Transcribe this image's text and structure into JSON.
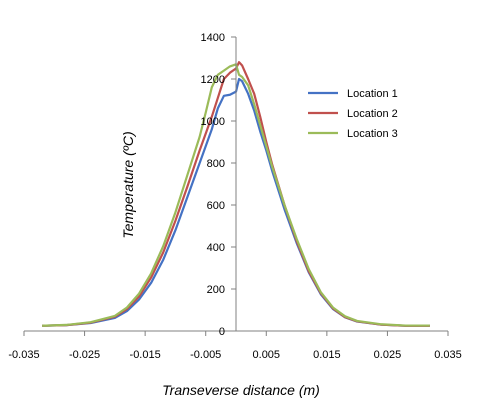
{
  "chart_data": {
    "type": "line",
    "xlabel": "Transeverse distance (m)",
    "ylabel": "Temperature  (ºC)",
    "xlim": [
      -0.035,
      0.035
    ],
    "ylim": [
      0,
      1400
    ],
    "x_ticks": [
      "-0.035",
      "-0.025",
      "-0.015",
      "-0.005",
      "0.005",
      "0.015",
      "0.025",
      "0.035"
    ],
    "y_ticks": [
      "0",
      "200",
      "400",
      "600",
      "800",
      "1000",
      "1200",
      "1400"
    ],
    "grid": false,
    "legend_position": "right",
    "series": [
      {
        "name": "Location 1",
        "color": "#4472C4",
        "points": [
          [
            -0.032,
            25
          ],
          [
            -0.028,
            28
          ],
          [
            -0.024,
            38
          ],
          [
            -0.02,
            62
          ],
          [
            -0.018,
            95
          ],
          [
            -0.016,
            150
          ],
          [
            -0.014,
            230
          ],
          [
            -0.012,
            340
          ],
          [
            -0.01,
            480
          ],
          [
            -0.008,
            640
          ],
          [
            -0.006,
            800
          ],
          [
            -0.004,
            960
          ],
          [
            -0.003,
            1060
          ],
          [
            -0.002,
            1120
          ],
          [
            -0.001,
            1125
          ],
          [
            0.0,
            1140
          ],
          [
            0.0005,
            1200
          ],
          [
            0.001,
            1190
          ],
          [
            0.002,
            1130
          ],
          [
            0.003,
            1050
          ],
          [
            0.004,
            950
          ],
          [
            0.005,
            860
          ],
          [
            0.006,
            760
          ],
          [
            0.008,
            580
          ],
          [
            0.01,
            420
          ],
          [
            0.012,
            280
          ],
          [
            0.014,
            175
          ],
          [
            0.016,
            105
          ],
          [
            0.018,
            65
          ],
          [
            0.02,
            45
          ],
          [
            0.024,
            30
          ],
          [
            0.028,
            25
          ],
          [
            0.032,
            25
          ]
        ]
      },
      {
        "name": "Location 2",
        "color": "#C0504D",
        "points": [
          [
            -0.032,
            25
          ],
          [
            -0.028,
            28
          ],
          [
            -0.024,
            40
          ],
          [
            -0.02,
            68
          ],
          [
            -0.018,
            105
          ],
          [
            -0.016,
            165
          ],
          [
            -0.014,
            255
          ],
          [
            -0.012,
            375
          ],
          [
            -0.01,
            525
          ],
          [
            -0.008,
            690
          ],
          [
            -0.006,
            860
          ],
          [
            -0.004,
            1020
          ],
          [
            -0.003,
            1110
          ],
          [
            -0.002,
            1200
          ],
          [
            -0.001,
            1230
          ],
          [
            0.0,
            1250
          ],
          [
            0.0005,
            1280
          ],
          [
            0.001,
            1265
          ],
          [
            0.002,
            1200
          ],
          [
            0.003,
            1130
          ],
          [
            0.004,
            1020
          ],
          [
            0.005,
            900
          ],
          [
            0.006,
            790
          ],
          [
            0.008,
            600
          ],
          [
            0.01,
            430
          ],
          [
            0.012,
            285
          ],
          [
            0.014,
            180
          ],
          [
            0.016,
            108
          ],
          [
            0.018,
            66
          ],
          [
            0.02,
            46
          ],
          [
            0.024,
            30
          ],
          [
            0.028,
            25
          ],
          [
            0.032,
            25
          ]
        ]
      },
      {
        "name": "Location 3",
        "color": "#9BBB59",
        "points": [
          [
            -0.032,
            25
          ],
          [
            -0.028,
            29
          ],
          [
            -0.024,
            42
          ],
          [
            -0.02,
            72
          ],
          [
            -0.018,
            112
          ],
          [
            -0.016,
            178
          ],
          [
            -0.014,
            275
          ],
          [
            -0.012,
            405
          ],
          [
            -0.01,
            565
          ],
          [
            -0.008,
            745
          ],
          [
            -0.006,
            925
          ],
          [
            -0.005,
            1040
          ],
          [
            -0.004,
            1160
          ],
          [
            -0.003,
            1220
          ],
          [
            -0.002,
            1240
          ],
          [
            -0.001,
            1260
          ],
          [
            0.0,
            1270
          ],
          [
            0.0005,
            1220
          ],
          [
            0.001,
            1210
          ],
          [
            0.002,
            1170
          ],
          [
            0.003,
            1080
          ],
          [
            0.004,
            980
          ],
          [
            0.005,
            880
          ],
          [
            0.006,
            780
          ],
          [
            0.008,
            600
          ],
          [
            0.01,
            440
          ],
          [
            0.012,
            295
          ],
          [
            0.014,
            185
          ],
          [
            0.016,
            112
          ],
          [
            0.018,
            70
          ],
          [
            0.02,
            48
          ],
          [
            0.024,
            32
          ],
          [
            0.028,
            26
          ],
          [
            0.032,
            26
          ]
        ]
      }
    ]
  }
}
